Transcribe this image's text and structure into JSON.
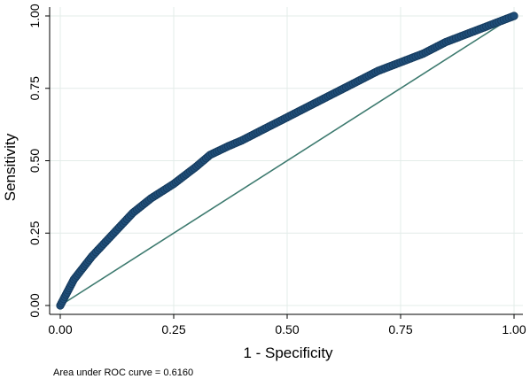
{
  "chart_data": {
    "type": "line",
    "xlabel": "1 - Specificity",
    "ylabel": "Sensitivity",
    "xlim": [
      0,
      1
    ],
    "ylim": [
      0,
      1
    ],
    "x_ticks": [
      "0.00",
      "0.25",
      "0.50",
      "0.75",
      "1.00"
    ],
    "y_ticks": [
      "0.00",
      "0.25",
      "0.50",
      "0.75",
      "1.00"
    ],
    "grid": true,
    "legend": "none",
    "note": "Area under ROC curve = 0.6160",
    "series": [
      {
        "style": "markers",
        "color": "#1f4e79",
        "x": [
          0.0,
          0.01,
          0.02,
          0.03,
          0.05,
          0.07,
          0.1,
          0.13,
          0.16,
          0.2,
          0.25,
          0.3,
          0.33,
          0.37,
          0.4,
          0.45,
          0.5,
          0.55,
          0.6,
          0.65,
          0.7,
          0.75,
          0.8,
          0.85,
          0.9,
          0.95,
          1.0
        ],
        "y": [
          0.0,
          0.03,
          0.06,
          0.09,
          0.13,
          0.17,
          0.22,
          0.27,
          0.32,
          0.37,
          0.42,
          0.48,
          0.52,
          0.55,
          0.57,
          0.61,
          0.65,
          0.69,
          0.73,
          0.77,
          0.81,
          0.84,
          0.87,
          0.91,
          0.94,
          0.97,
          1.0
        ]
      },
      {
        "style": "line",
        "color": "#3d7a6f",
        "x": [
          0,
          1
        ],
        "y": [
          0,
          1
        ]
      }
    ]
  }
}
